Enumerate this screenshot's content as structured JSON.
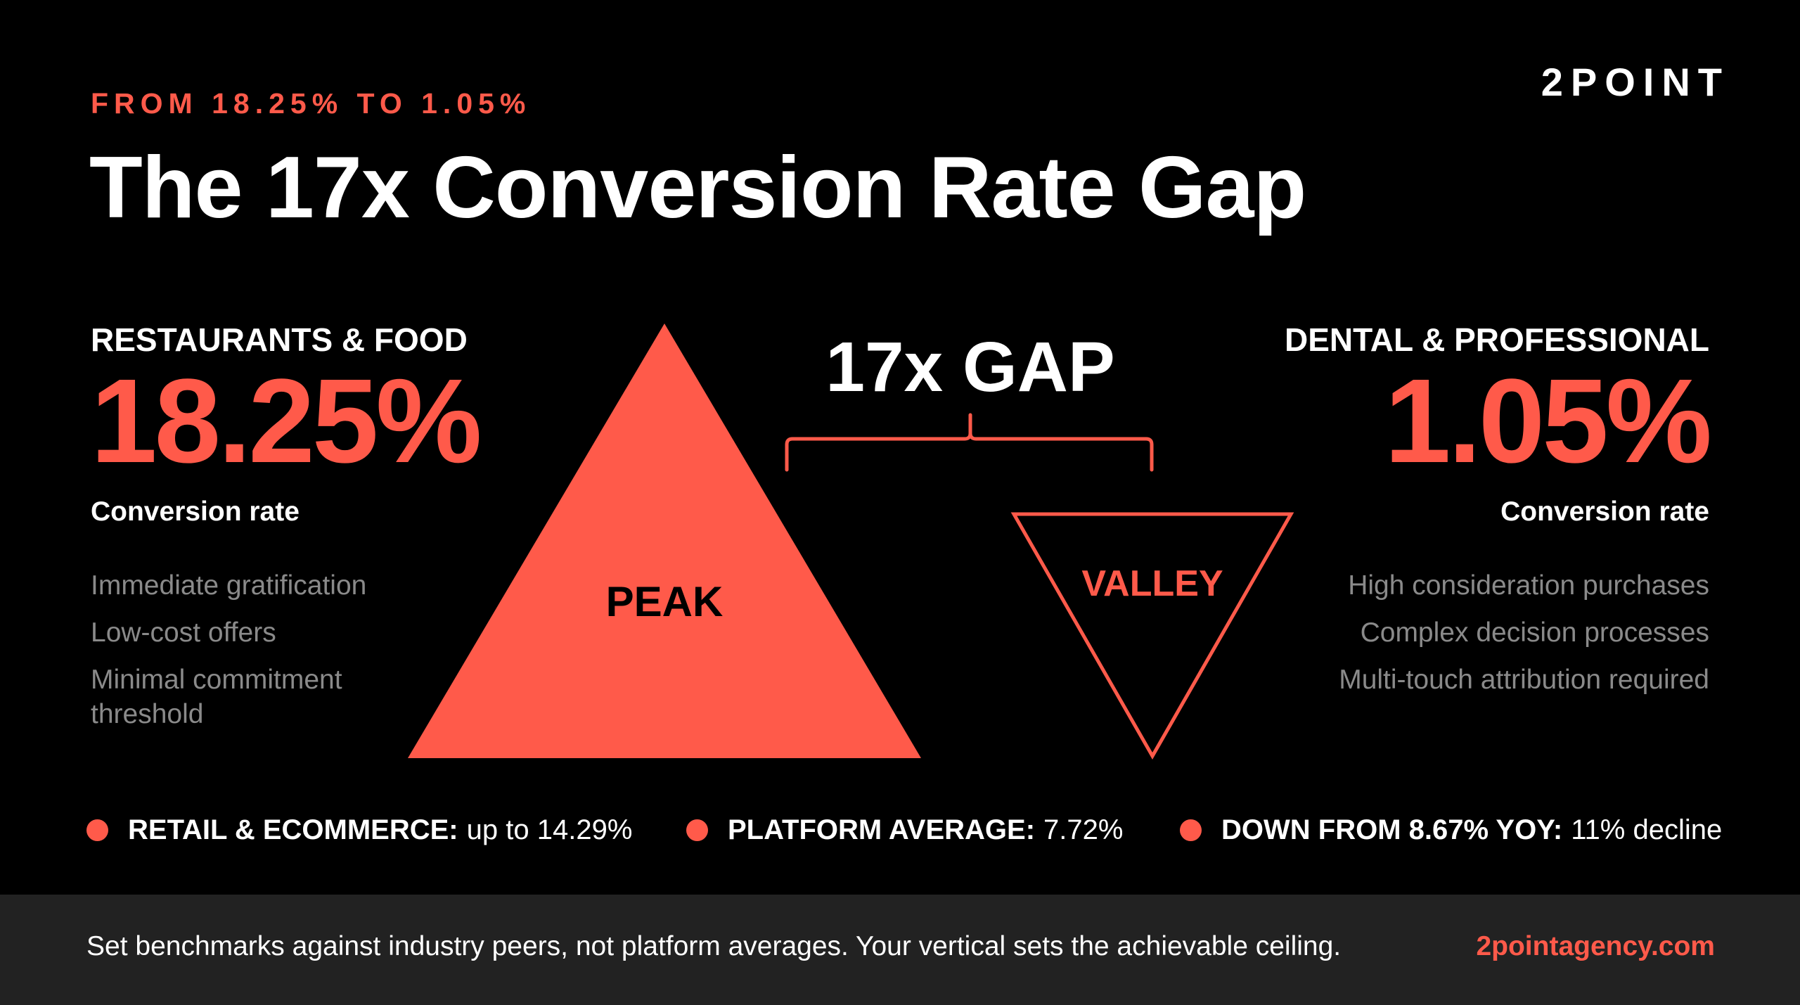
{
  "header": {
    "eyebrow": "FROM 18.25% TO 1.05%",
    "title": "The 17x Conversion Rate Gap",
    "brand": "2POINT"
  },
  "left": {
    "industry": "RESTAURANTS & FOOD",
    "rate": "18.25%",
    "rate_label": "Conversion rate",
    "traits": [
      "Immediate gratification",
      "Low-cost offers",
      "Minimal commitment threshold"
    ]
  },
  "right": {
    "industry": "DENTAL & PROFESSIONAL",
    "rate": "1.05%",
    "rate_label": "Conversion rate",
    "traits": [
      "High consideration purchases",
      "Complex decision processes",
      "Multi-touch attribution required"
    ]
  },
  "diagram": {
    "gap_label": "17x GAP",
    "peak_label": "PEAK",
    "valley_label": "VALLEY"
  },
  "stats": [
    {
      "label": "RETAIL & ECOMMERCE:",
      "value": "up to 14.29%"
    },
    {
      "label": "PLATFORM AVERAGE:",
      "value": "7.72%"
    },
    {
      "label": "DOWN FROM 8.67% YOY:",
      "value": "11% decline"
    }
  ],
  "footer": {
    "note": "Set benchmarks against industry peers, not platform averages. Your vertical sets the achievable ceiling.",
    "link": "2pointagency.com"
  },
  "colors": {
    "accent": "#FF5A4A",
    "background": "#000000",
    "footer_bg": "#222222",
    "muted_text": "#8a8a8a"
  }
}
